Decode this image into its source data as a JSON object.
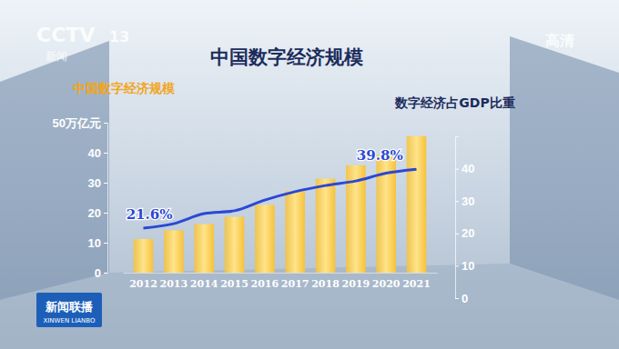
{
  "chart_data": {
    "type": "bar",
    "title": "中国数字经济规模",
    "categories": [
      "2012",
      "2013",
      "2014",
      "2015",
      "2016",
      "2017",
      "2018",
      "2019",
      "2020",
      "2021"
    ],
    "series": [
      {
        "name": "中国数字经济规模",
        "type": "bar",
        "color": "#f6c23a",
        "values": [
          11.2,
          14.1,
          16.2,
          18.6,
          22.6,
          27.2,
          31.3,
          35.8,
          39.2,
          45.5
        ]
      },
      {
        "name": "数字经济占GDP比重",
        "type": "line",
        "axis": "y2",
        "color": "#2a48d6",
        "values": [
          21.6,
          23.0,
          26.1,
          27.0,
          30.3,
          32.9,
          34.8,
          36.2,
          38.6,
          39.8
        ]
      }
    ],
    "ylim": [
      0,
      50
    ],
    "yticks": [
      0,
      10,
      20,
      30,
      40,
      {
        "value": 50,
        "label": "50万亿元"
      }
    ],
    "y2lim": [
      0,
      50
    ],
    "y2ticks": [
      0,
      10,
      20,
      30,
      40
    ],
    "annotations": [
      {
        "series": 1,
        "index": 0,
        "text": "21.6%"
      },
      {
        "series": 1,
        "index": 9,
        "text": "39.8%"
      }
    ],
    "watermarks": [
      "CCTV",
      "13",
      "新闻",
      "高清",
      "新闻联播",
      "XINWEN LIANBO"
    ]
  }
}
